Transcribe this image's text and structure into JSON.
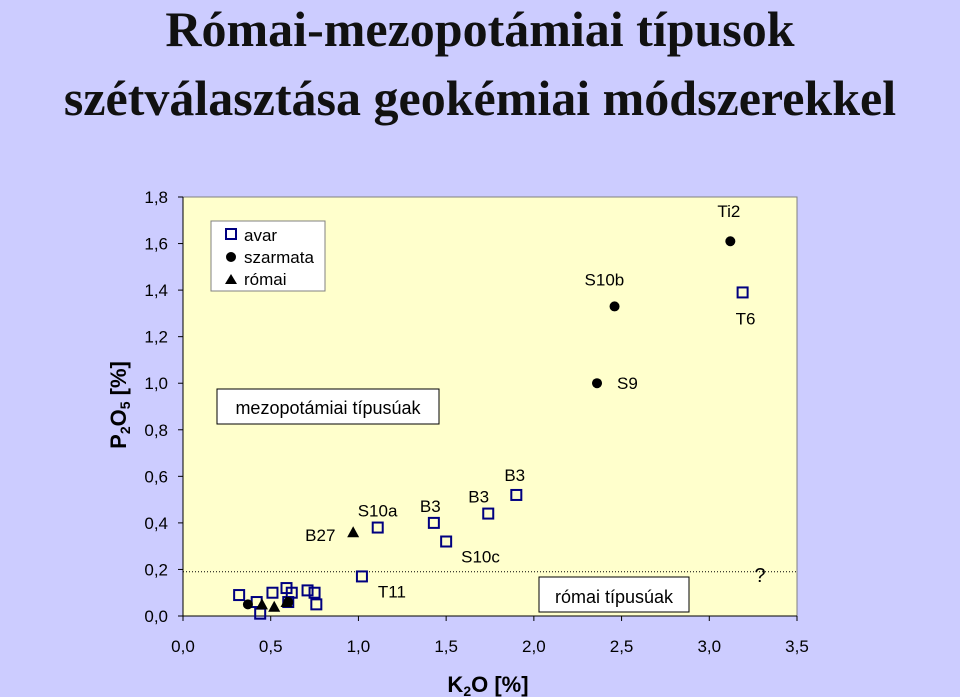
{
  "title_lines": [
    "Római-mezopotámiai típusok",
    "szétválasztása geokémiai módszerekkel"
  ],
  "chart_data": {
    "type": "scatter",
    "xlabel": {
      "main": "K",
      "sub": "2",
      "rest": "O [%]"
    },
    "ylabel": {
      "main": "P",
      "sub1": "2",
      "mid": "O",
      "sub2": "5",
      "rest": " [%]"
    },
    "xlim": [
      0,
      3.5
    ],
    "ylim": [
      0,
      1.8
    ],
    "x_ticks": [
      {
        "value": 0,
        "label": "0,0"
      },
      {
        "value": 0.5,
        "label": "0,5"
      },
      {
        "value": 1.0,
        "label": "1,0"
      },
      {
        "value": 1.5,
        "label": "1,5"
      },
      {
        "value": 2.0,
        "label": "2,0"
      },
      {
        "value": 2.5,
        "label": "2,5"
      },
      {
        "value": 3.0,
        "label": "3,0"
      },
      {
        "value": 3.5,
        "label": "3,5"
      }
    ],
    "y_ticks": [
      {
        "value": 0,
        "label": "0,0"
      },
      {
        "value": 0.2,
        "label": "0,2"
      },
      {
        "value": 0.4,
        "label": "0,4"
      },
      {
        "value": 0.6,
        "label": "0,6"
      },
      {
        "value": 0.8,
        "label": "0,8"
      },
      {
        "value": 1.0,
        "label": "1,0"
      },
      {
        "value": 1.2,
        "label": "1,2"
      },
      {
        "value": 1.4,
        "label": "1,4"
      },
      {
        "value": 1.6,
        "label": "1,6"
      },
      {
        "value": 1.8,
        "label": "1,8"
      }
    ],
    "grid": false,
    "legend_position": "top-left",
    "series": [
      {
        "name": "avar",
        "marker": "square-open",
        "color": "#000080",
        "points": [
          {
            "x": 0.32,
            "y": 0.09
          },
          {
            "x": 0.42,
            "y": 0.06
          },
          {
            "x": 0.44,
            "y": 0.01
          },
          {
            "x": 0.51,
            "y": 0.1
          },
          {
            "x": 0.59,
            "y": 0.12
          },
          {
            "x": 0.6,
            "y": 0.06
          },
          {
            "x": 0.62,
            "y": 0.1
          },
          {
            "x": 0.71,
            "y": 0.11
          },
          {
            "x": 0.75,
            "y": 0.1
          },
          {
            "x": 0.76,
            "y": 0.05
          },
          {
            "x": 1.02,
            "y": 0.17,
            "label": "T11"
          },
          {
            "x": 1.11,
            "y": 0.38,
            "label": "S10a"
          },
          {
            "x": 1.43,
            "y": 0.4,
            "label": "B3"
          },
          {
            "x": 1.5,
            "y": 0.32,
            "label": "S10c"
          },
          {
            "x": 1.74,
            "y": 0.44,
            "label": "B3"
          },
          {
            "x": 1.9,
            "y": 0.52,
            "label": "B3"
          },
          {
            "x": 3.19,
            "y": 1.39,
            "label": "T6"
          }
        ]
      },
      {
        "name": "szarmata",
        "marker": "circle-filled",
        "color": "#000000",
        "points": [
          {
            "x": 0.37,
            "y": 0.05
          },
          {
            "x": 0.6,
            "y": 0.06
          },
          {
            "x": 2.36,
            "y": 1.0,
            "label": "S9"
          },
          {
            "x": 2.46,
            "y": 1.33,
            "label": "S10b"
          },
          {
            "x": 3.12,
            "y": 1.61,
            "label": "Ti2"
          }
        ]
      },
      {
        "name": "római",
        "marker": "triangle-filled",
        "color": "#000000",
        "points": [
          {
            "x": 0.45,
            "y": 0.05
          },
          {
            "x": 0.52,
            "y": 0.04
          },
          {
            "x": 0.59,
            "y": 0.06
          },
          {
            "x": 0.97,
            "y": 0.36,
            "label": "B27"
          }
        ]
      }
    ],
    "reference_line": {
      "y": 0.19,
      "style": "dotted"
    },
    "annotations": [
      {
        "text": "mezopotámiai típusúak",
        "boxed": true
      },
      {
        "text": "római típusúak",
        "boxed": true
      },
      {
        "text": "?",
        "boxed": false
      }
    ]
  },
  "colors": {
    "background": "#ccccff",
    "plot_area": "#ffffcc",
    "avar_marker": "#000080"
  }
}
